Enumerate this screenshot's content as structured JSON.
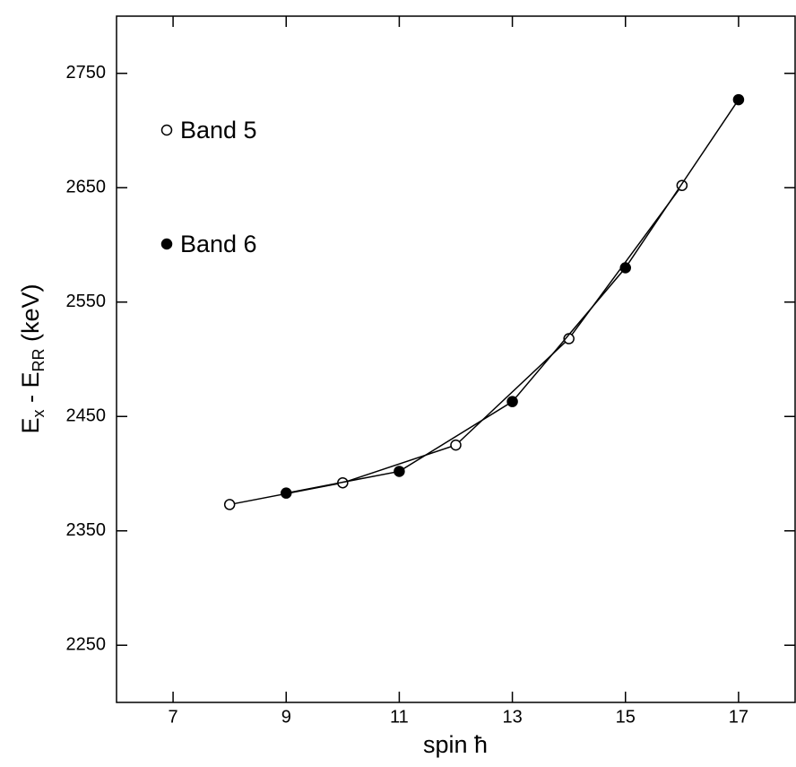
{
  "chart_data": {
    "type": "line",
    "x_label": "spin ħ",
    "y_label": [
      "E",
      "x",
      " - E",
      "RR",
      "  (keV)"
    ],
    "xlim": [
      6,
      18
    ],
    "xticks": [
      7,
      9,
      11,
      13,
      15,
      17
    ],
    "ylim": [
      2200,
      2800
    ],
    "yticks": [
      2250,
      2350,
      2450,
      2550,
      2650,
      2750
    ],
    "legend": "upper left",
    "series": [
      {
        "name": "Band 5",
        "marker": "open",
        "color": "#000000",
        "x": [
          8,
          10,
          12,
          14,
          16
        ],
        "values": [
          2373,
          2392,
          2425,
          2518,
          2652
        ]
      },
      {
        "name": "Band 6",
        "marker": "filled",
        "color": "#000000",
        "x": [
          9,
          11,
          13,
          15,
          17
        ],
        "values": [
          2383,
          2402,
          2463,
          2580,
          2727
        ]
      }
    ]
  }
}
